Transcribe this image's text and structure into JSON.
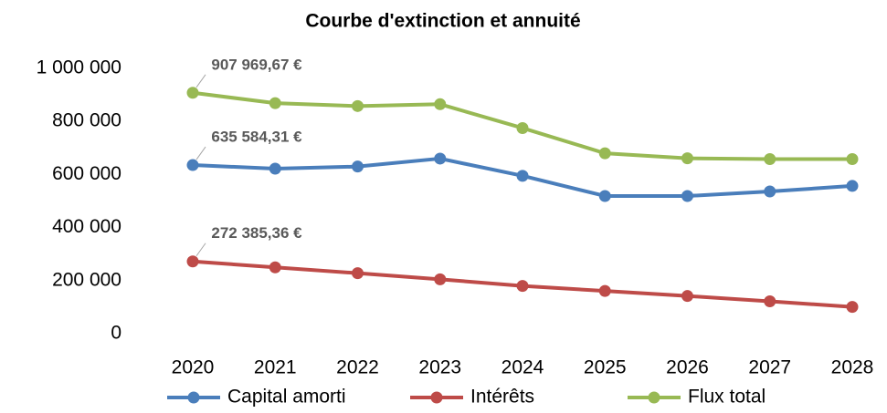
{
  "chart_data": {
    "type": "line",
    "title": "Courbe d'extinction et annuité",
    "categories": [
      "2020",
      "2021",
      "2022",
      "2023",
      "2024",
      "2025",
      "2026",
      "2027",
      "2028"
    ],
    "series": [
      {
        "name": "Capital amorti",
        "color": "#4a7ebb",
        "values": [
          635584.31,
          622000,
          630000,
          660000,
          595000,
          519000,
          519000,
          536000,
          557000
        ],
        "value_labels": [
          "635 584,31 €",
          null,
          null,
          null,
          null,
          null,
          null,
          null,
          null
        ]
      },
      {
        "name": "Intérêts",
        "color": "#be4b48",
        "values": [
          272385.36,
          250000,
          228000,
          205000,
          180000,
          161000,
          142000,
          122000,
          101000
        ],
        "value_labels": [
          "272 385,36 €",
          null,
          null,
          null,
          null,
          null,
          null,
          null,
          null
        ]
      },
      {
        "name": "Flux total",
        "color": "#98b954",
        "values": [
          907969.67,
          869000,
          858000,
          865000,
          775000,
          680000,
          661000,
          658000,
          658000
        ],
        "value_labels": [
          "907 969,67 €",
          null,
          null,
          null,
          null,
          null,
          null,
          null,
          null
        ]
      }
    ],
    "ylim": [
      0,
      1000000
    ],
    "yticks": [
      0,
      {
        "value": 200000,
        "label": "200 000"
      },
      {
        "value": 400000,
        "label": "400 000"
      },
      {
        "value": 600000,
        "label": "600 000"
      },
      {
        "value": 800000,
        "label": "800 000"
      },
      {
        "value": 1000000,
        "label": "1 000 000"
      }
    ],
    "grid": false,
    "legend": "bottom"
  }
}
